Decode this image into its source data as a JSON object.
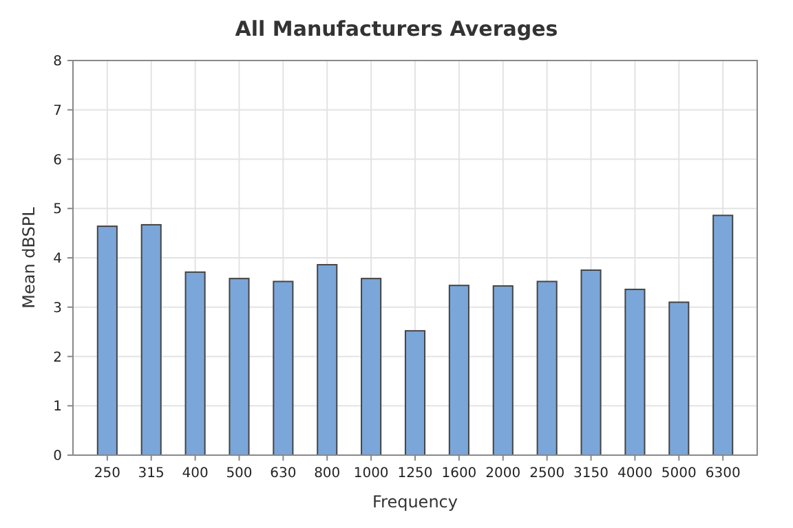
{
  "chart_data": {
    "type": "bar",
    "title": "All Manufacturers Averages",
    "xlabel": "Frequency",
    "ylabel": "Mean dBSPL",
    "categories": [
      "250",
      "315",
      "400",
      "500",
      "630",
      "800",
      "1000",
      "1250",
      "1600",
      "2000",
      "2500",
      "3150",
      "4000",
      "5000",
      "6300"
    ],
    "values": [
      4.64,
      4.67,
      3.71,
      3.58,
      3.52,
      3.86,
      3.58,
      2.52,
      3.44,
      3.43,
      3.52,
      3.75,
      3.36,
      3.1,
      4.86
    ],
    "color": "#7ba6d9",
    "ylim": [
      0,
      8
    ],
    "yticks": [
      0,
      1,
      2,
      3,
      4,
      5,
      6,
      7,
      8
    ],
    "grid": true
  }
}
